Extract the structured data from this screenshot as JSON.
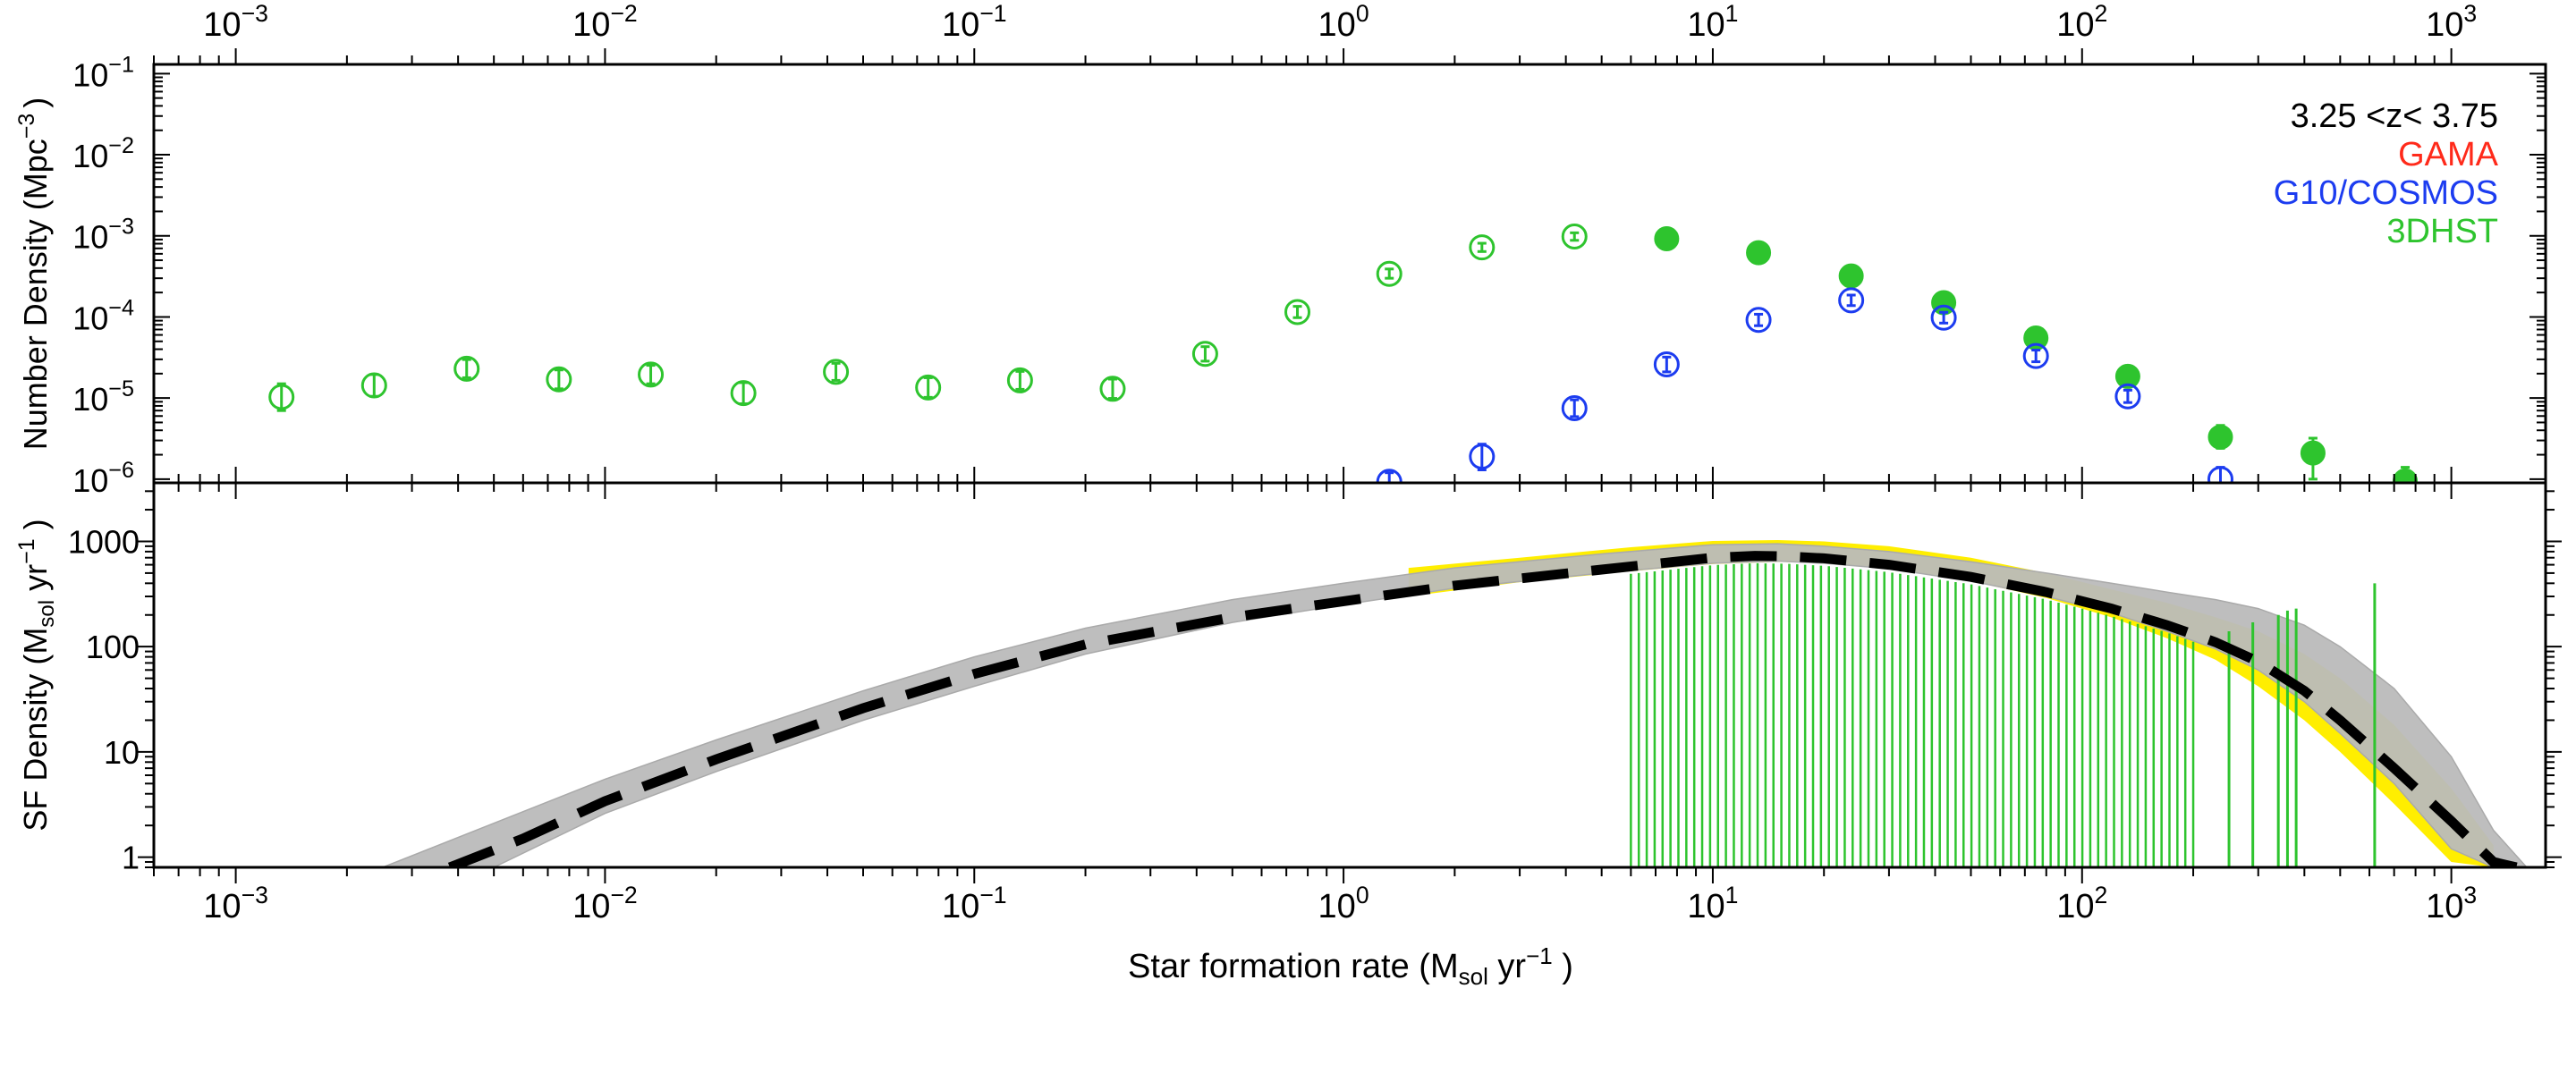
{
  "chart_data": [
    {
      "type": "scatter",
      "panel": "top",
      "xscale": "log",
      "xlim": [
        0.0006,
        1800
      ],
      "yscale": "log",
      "ylim": [
        9e-07,
        0.13
      ],
      "ylabel_main": "Number Density (Mpc",
      "ylabel_exp": "−3",
      "ylabel_close": ")",
      "x_tick_labels": [
        {
          "value": 0.001,
          "base": "10",
          "exp": "−3"
        },
        {
          "value": 0.01,
          "base": "10",
          "exp": "−2"
        },
        {
          "value": 0.1,
          "base": "10",
          "exp": "−1"
        },
        {
          "value": 1,
          "base": "10",
          "exp": "0"
        },
        {
          "value": 10,
          "base": "10",
          "exp": "1"
        },
        {
          "value": 100,
          "base": "10",
          "exp": "2"
        },
        {
          "value": 1000,
          "base": "10",
          "exp": "3"
        }
      ],
      "y_tick_labels": [
        {
          "value": 0.1,
          "base": "10",
          "exp": "−1"
        },
        {
          "value": 0.01,
          "base": "10",
          "exp": "−2"
        },
        {
          "value": 0.001,
          "base": "10",
          "exp": "−3"
        },
        {
          "value": 0.0001,
          "base": "10",
          "exp": "−4"
        },
        {
          "value": 1e-05,
          "base": "10",
          "exp": "−5"
        },
        {
          "value": 1e-06,
          "base": "10",
          "exp": "−6"
        }
      ],
      "legend": {
        "position": "top-right",
        "entries": [
          {
            "label": "3.25 <z< 3.75",
            "color": "#000000"
          },
          {
            "label": "GAMA",
            "color": "#ff2a1a"
          },
          {
            "label": "G10/COSMOS",
            "color": "#1c3cf0"
          },
          {
            "label": "3DHST",
            "color": "#2ec42e"
          }
        ]
      },
      "series": [
        {
          "name": "3DHST (open)",
          "color": "#2ec42e",
          "marker": "open-circle",
          "points": [
            {
              "x": 0.00133,
              "y": 1.03e-05,
              "lo": 7e-06,
              "hi": 1.5e-05
            },
            {
              "x": 0.00237,
              "y": 1.43e-05,
              "lo": 1.05e-05,
              "hi": 1.95e-05
            },
            {
              "x": 0.00422,
              "y": 2.3e-05,
              "lo": 1.78e-05,
              "hi": 2.98e-05
            },
            {
              "x": 0.0075,
              "y": 1.7e-05,
              "lo": 1.3e-05,
              "hi": 2.22e-05
            },
            {
              "x": 0.0133,
              "y": 1.95e-05,
              "lo": 1.5e-05,
              "hi": 2.53e-05
            },
            {
              "x": 0.0237,
              "y": 1.15e-05,
              "lo": 8.5e-06,
              "hi": 1.55e-05
            },
            {
              "x": 0.0422,
              "y": 2.1e-05,
              "lo": 1.65e-05,
              "hi": 2.68e-05
            },
            {
              "x": 0.075,
              "y": 1.35e-05,
              "lo": 1.02e-05,
              "hi": 1.78e-05
            },
            {
              "x": 0.133,
              "y": 1.65e-05,
              "lo": 1.28e-05,
              "hi": 2.13e-05
            },
            {
              "x": 0.237,
              "y": 1.3e-05,
              "lo": 9.9e-06,
              "hi": 1.71e-05
            },
            {
              "x": 0.422,
              "y": 3.5e-05,
              "lo": 2.85e-05,
              "hi": 4.3e-05
            },
            {
              "x": 0.75,
              "y": 0.000115,
              "lo": 9.8e-05,
              "hi": 0.000135
            },
            {
              "x": 1.33,
              "y": 0.00034,
              "lo": 0.0003,
              "hi": 0.00039
            },
            {
              "x": 2.37,
              "y": 0.00072,
              "lo": 0.00064,
              "hi": 0.00081
            },
            {
              "x": 4.22,
              "y": 0.00098,
              "lo": 0.00088,
              "hi": 0.00109
            }
          ]
        },
        {
          "name": "3DHST (filled)",
          "color": "#2ec42e",
          "marker": "filled-circle",
          "points": [
            {
              "x": 7.5,
              "y": 0.00092,
              "lo": 0.00084,
              "hi": 0.00101
            },
            {
              "x": 13.3,
              "y": 0.00062,
              "lo": 0.00056,
              "hi": 0.00069
            },
            {
              "x": 23.7,
              "y": 0.00032,
              "lo": 0.00028,
              "hi": 0.00036
            },
            {
              "x": 42.2,
              "y": 0.00015,
              "lo": 0.000132,
              "hi": 0.00017
            },
            {
              "x": 75,
              "y": 5.5e-05,
              "lo": 4.7e-05,
              "hi": 6.4e-05
            },
            {
              "x": 133,
              "y": 1.85e-05,
              "lo": 1.55e-05,
              "hi": 2.2e-05
            },
            {
              "x": 237,
              "y": 3.3e-06,
              "lo": 2.4e-06,
              "hi": 4.6e-06
            },
            {
              "x": 422,
              "y": 2.1e-06,
              "lo": 1e-06,
              "hi": 3.2e-06
            },
            {
              "x": 750,
              "y": 9.5e-07,
              "lo": 8.5e-07,
              "hi": 1.4e-06
            }
          ]
        },
        {
          "name": "G10/COSMOS",
          "color": "#1c3cf0",
          "marker": "open-circle",
          "points": [
            {
              "x": 1.33,
              "y": 9.3e-07,
              "lo": 8.8e-07,
              "hi": 1.2e-06
            },
            {
              "x": 2.37,
              "y": 1.9e-06,
              "lo": 1.3e-06,
              "hi": 2.7e-06
            },
            {
              "x": 4.22,
              "y": 7.5e-06,
              "lo": 5.9e-06,
              "hi": 9.5e-06
            },
            {
              "x": 7.5,
              "y": 2.6e-05,
              "lo": 2.1e-05,
              "hi": 3.2e-05
            },
            {
              "x": 13.3,
              "y": 9.2e-05,
              "lo": 7.8e-05,
              "hi": 0.000108
            },
            {
              "x": 23.7,
              "y": 0.00016,
              "lo": 0.000138,
              "hi": 0.000186
            },
            {
              "x": 42.2,
              "y": 9.8e-05,
              "lo": 8.4e-05,
              "hi": 0.000114
            },
            {
              "x": 75,
              "y": 3.3e-05,
              "lo": 2.8e-05,
              "hi": 3.9e-05
            },
            {
              "x": 133,
              "y": 1.05e-05,
              "lo": 8.8e-06,
              "hi": 1.25e-05
            },
            {
              "x": 237,
              "y": 1e-06,
              "lo": 8.8e-07,
              "hi": 1.4e-06
            }
          ]
        }
      ]
    },
    {
      "type": "line",
      "panel": "bottom",
      "xscale": "log",
      "xlim": [
        0.0006,
        1800
      ],
      "yscale": "log",
      "ylim": [
        0.8,
        3600
      ],
      "title": "",
      "xlabel_main": "Star formation rate (M",
      "xlabel_sub": "sol",
      "xlabel_mid": " yr",
      "xlabel_exp": "−1",
      "xlabel_close": " )",
      "ylabel_main": "SF Density (M",
      "ylabel_sub": "sol",
      "ylabel_mid": " yr",
      "ylabel_exp": "−1",
      "ylabel_close": " )",
      "y_tick_labels": [
        {
          "value": 1,
          "label": "1"
        },
        {
          "value": 10,
          "label": "10"
        },
        {
          "value": 100,
          "label": "100"
        },
        {
          "value": 1000,
          "label": "1000"
        }
      ],
      "x_tick_labels": [
        {
          "value": 0.001,
          "base": "10",
          "exp": "−3"
        },
        {
          "value": 0.01,
          "base": "10",
          "exp": "−2"
        },
        {
          "value": 0.1,
          "base": "10",
          "exp": "−1"
        },
        {
          "value": 1,
          "base": "10",
          "exp": "0"
        },
        {
          "value": 10,
          "base": "10",
          "exp": "1"
        },
        {
          "value": 100,
          "base": "10",
          "exp": "2"
        },
        {
          "value": 1000,
          "base": "10",
          "exp": "3"
        }
      ],
      "gray_band": {
        "color": "#bbbbbb",
        "x": [
          0.0025,
          0.005,
          0.01,
          0.02,
          0.05,
          0.1,
          0.2,
          0.5,
          1,
          2,
          5,
          10,
          15,
          20,
          30,
          50,
          80,
          120,
          170,
          230,
          300,
          400,
          500,
          700,
          1000,
          1300,
          1600
        ],
        "upper": [
          0.8,
          2.1,
          5.5,
          13,
          38,
          80,
          150,
          280,
          400,
          560,
          760,
          930,
          950,
          900,
          800,
          640,
          500,
          400,
          330,
          280,
          230,
          160,
          100,
          40,
          9,
          1.8,
          0.8
        ],
        "lower": [
          0.8,
          0.8,
          2.6,
          6.5,
          20,
          42,
          85,
          170,
          250,
          360,
          500,
          620,
          650,
          620,
          550,
          420,
          300,
          210,
          140,
          95,
          60,
          30,
          15,
          5,
          1.2,
          0.8,
          0.8
        ]
      },
      "yellow_band": {
        "color": "#ffee00",
        "x": [
          1.5,
          3,
          6,
          10,
          15,
          20,
          30,
          50,
          80,
          120,
          170,
          230,
          300,
          400,
          500,
          700,
          1000,
          1300
        ],
        "upper": [
          560,
          700,
          880,
          1010,
          1030,
          1000,
          900,
          700,
          500,
          350,
          260,
          190,
          140,
          85,
          50,
          18,
          4.5,
          1.3
        ],
        "lower": [
          300,
          410,
          520,
          610,
          640,
          620,
          560,
          420,
          290,
          190,
          120,
          75,
          42,
          20,
          10,
          3.2,
          0.9,
          0.8
        ]
      },
      "fit_line": {
        "name": "best fit",
        "color": "#000000",
        "style": "dashed",
        "x": [
          0.0038,
          0.006,
          0.01,
          0.02,
          0.05,
          0.1,
          0.2,
          0.5,
          1,
          2,
          5,
          10,
          13,
          16,
          20,
          30,
          50,
          80,
          120,
          170,
          230,
          300,
          400,
          500,
          700,
          1000,
          1300,
          1500
        ],
        "y": [
          0.8,
          1.5,
          3.4,
          8.5,
          26,
          55,
          105,
          190,
          270,
          380,
          540,
          700,
          730,
          720,
          690,
          600,
          460,
          330,
          230,
          160,
          110,
          72,
          38,
          20,
          7,
          2.2,
          0.9,
          0.8
        ]
      },
      "green_bars": {
        "color": "#2ec42e",
        "x_start": 6,
        "x_end": 200,
        "count": 72,
        "extra": [
          {
            "x": 250,
            "top": 140
          },
          {
            "x": 290,
            "top": 170
          },
          {
            "x": 340,
            "top": 200
          },
          {
            "x": 360,
            "top": 220
          },
          {
            "x": 380,
            "top": 230
          },
          {
            "x": 620,
            "top": 400
          }
        ]
      }
    }
  ]
}
